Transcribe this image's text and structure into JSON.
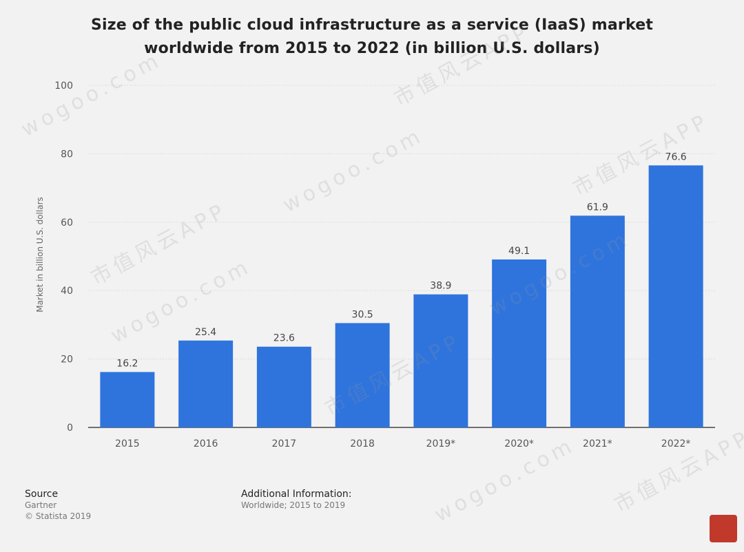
{
  "title_lines": [
    "Size of the public cloud infrastructure as a service (IaaS) market",
    "worldwide from 2015 to 2022 (in billion U.S. dollars)"
  ],
  "chart_data": {
    "type": "bar",
    "title": "Size of the public cloud infrastructure as a service (IaaS) market worldwide from 2015 to 2022 (in billion U.S. dollars)",
    "xlabel": "",
    "ylabel": "Market in billion U.S. dollars",
    "categories": [
      "2015",
      "2016",
      "2017",
      "2018",
      "2019*",
      "2020*",
      "2021*",
      "2022*"
    ],
    "values": [
      16.2,
      25.4,
      23.6,
      30.5,
      38.9,
      49.1,
      61.9,
      76.6
    ],
    "value_labels": [
      "16.2",
      "25.4",
      "23.6",
      "30.5",
      "38.9",
      "49.1",
      "61.9",
      "76.6"
    ],
    "ylim": [
      0,
      100
    ],
    "yticks": [
      "0",
      "20",
      "40",
      "60",
      "80",
      "100"
    ],
    "grid": true,
    "bar_color": "#2f74dd"
  },
  "footer": {
    "source_heading": "Source",
    "source_name": "Gartner",
    "copyright": "© Statista 2019",
    "info_heading": "Additional Information:",
    "info_text": "Worldwide; 2015 to 2019"
  },
  "watermark_text": [
    "wogoo.com",
    "市值风云APP"
  ],
  "colors": {
    "background": "#f2f2f2",
    "bar": "#2f74dd",
    "seal": "#c0392b"
  }
}
